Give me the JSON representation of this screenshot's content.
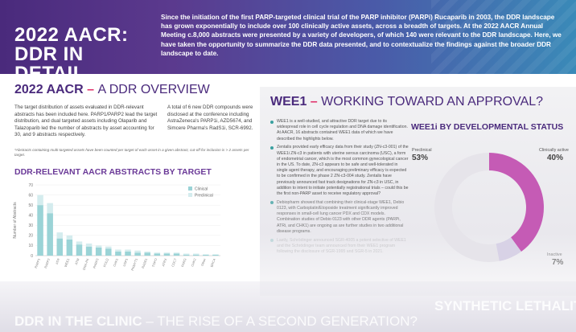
{
  "banner": {
    "title_line1": "2022 AACR:",
    "title_line2": "DDR IN DETAIL",
    "text": "Since the initiation of the first PARP-targeted clinical trial of the PARP inhibitor (PARPi) Rucaparib in 2003, the DDR landscape has grown exponentially to include over 100 clinically active assets, across a breadth of targets. At the 2022 AACR Annual Meeting c.8,000 abstracts were presented by a variety of developers, of which 140 were relevant to the DDR landscape. Here, we have taken the opportunity to summarize the DDR data presented, and to contextualize the findings against the broader DDR landscape to date."
  },
  "overview": {
    "heading_bold": "2022 AACR",
    "heading_dash": " – ",
    "heading_thin": "A DDR OVERVIEW",
    "para_a": "The target distribution of assets evaluated in DDR-relevant abstracts has been included here. PARP1/PARP2 lead the target distribution, and dual targeted assets including Olaparib and Talazoparib led the number of abstracts by asset accounting for 30, and 9 abstracts respectively.",
    "para_b": "A total of 6 new DDR compounds were disclosed at the conference including AstraZeneca's PARP1i, AZD5674, and Simcere Pharma's RadS1i, SCR-6992.",
    "note": "*Abstracts containing multi-targeted assets have been counted per target of each asset in a given abstract, cut-off for inclusion is > 2 assets per target."
  },
  "chart_data": {
    "type": "bar",
    "title": "DDR-RELEVANT AACR ABSTRACTS BY TARGET",
    "ylabel": "Number of Abstracts",
    "xlabel": "",
    "ylim": [
      0,
      70
    ],
    "yticks": [
      0,
      10,
      20,
      30,
      40,
      50,
      60,
      70
    ],
    "legend_position": "top-right",
    "categories": [
      "PARP1",
      "PARP2",
      "ATR",
      "WEE1",
      "ATM",
      "DNA-PK",
      "PARP3",
      "POLQ",
      "CHK1",
      "USP1",
      "PKMYT1",
      "RAD51",
      "TOPO",
      "ATRX",
      "CDC7",
      "PARG",
      "CHK2",
      "Other",
      "BRCA"
    ],
    "series": [
      {
        "name": "Clinical",
        "color": "#9ad3d6",
        "values": [
          50,
          42,
          17,
          16,
          11,
          9,
          8,
          7,
          4,
          4,
          3,
          3,
          2,
          2,
          2,
          1,
          1,
          1,
          1
        ]
      },
      {
        "name": "Preclinical",
        "color": "#d4ecee",
        "values": [
          10,
          10,
          6,
          4,
          3,
          3,
          2,
          2,
          2,
          2,
          2,
          1,
          1,
          1,
          1,
          1,
          1,
          0,
          0
        ]
      }
    ]
  },
  "wee1": {
    "heading_bold": "WEE1",
    "heading_dash": " – ",
    "heading_thin": "WORKING TOWARD AN APPROVAL?",
    "bullets": [
      "WEE1 is a well-studied, and attractive DDR target due to its widespread role in cell cycle regulation and DNA damage identification. At AACR, 16 abstracts contained WEE1 data of which we have described the highlights below.",
      "Zentalis provided early efficacy data from their study (ZN-c3-001) of the WEE1i ZN-c3 in patients with uterine serous carcinoma (USC), a form of endometrial cancer, which is the most common gynecological cancer in the US. To date, ZN-c3 appears to be safe and well-tolerated in single agent therapy, and encouraging preliminary efficacy is expected to be confirmed in the phase 2 ZN-c3-004 study. Zentalis have previously announced fast track designations for ZN-c3 in USC, in addition to intent to initiate potentially registrational trials – could this be the first non-PARP asset to receive regulatory approval?",
      "Debiopharm showed that combining their clinical-stage WEE1, Debio 0123, with Carboplatin/Etoposide treatment significantly improved responses in small-cell lung cancer PDX and CDX models. Combination studies of Debio 0123 with other DDR agents (PARPi, ATRi, and CHK1) are ongoing as are further studies in two additional disease programs.",
      "Lastly, Schrödinger announced SGR-4005 a potent selective of WEE1 and the Schrödinger team announced from their WEE1 program following the disclosure of SGR-1995 and SGR-5 in 2021."
    ]
  },
  "donut": {
    "title": "WEE1i BY DEVELOPMENTAL STATUS",
    "segments": [
      {
        "label": "Preclinical",
        "value": 53,
        "display": "53%",
        "color": "#e6e4ea"
      },
      {
        "label": "Clinically active",
        "value": 40,
        "display": "40%",
        "color": "#c55bb5"
      },
      {
        "label": "Inactive",
        "value": 7,
        "display": "7%",
        "color": "#d8d2e6"
      }
    ]
  },
  "bottom": {
    "left_bold": "DDR IN THE CLINIC",
    "left_dash": " – ",
    "left_thin": "THE RISE OF A SECOND GENERATION?",
    "right": "SYNTHETIC LETHALITY"
  }
}
